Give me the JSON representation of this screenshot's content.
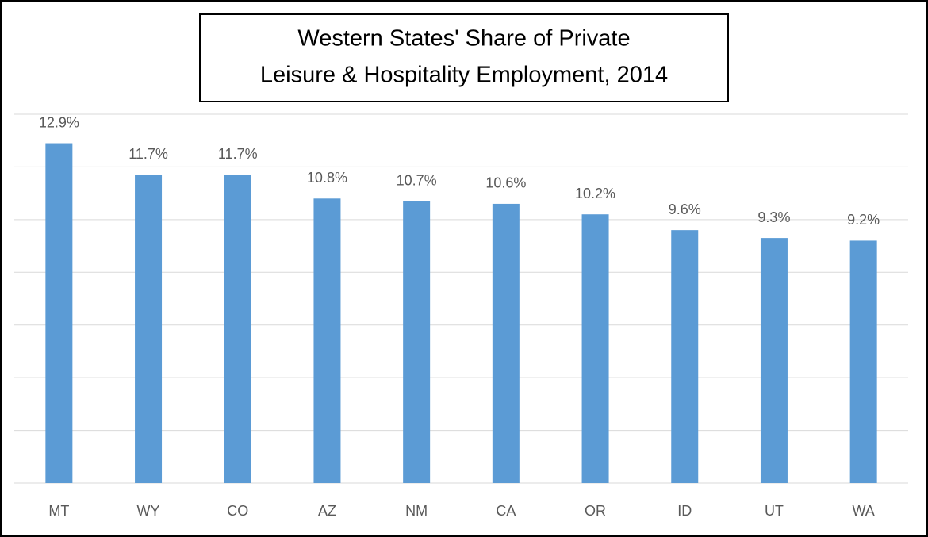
{
  "chart_data": {
    "type": "bar",
    "title": [
      "Western States' Share of Private",
      "Leisure & Hospitality Employment, 2014"
    ],
    "categories": [
      "MT",
      "WY",
      "CO",
      "AZ",
      "NM",
      "CA",
      "OR",
      "ID",
      "UT",
      "WA"
    ],
    "values": [
      12.9,
      11.7,
      11.7,
      10.8,
      10.7,
      10.6,
      10.2,
      9.6,
      9.3,
      9.2
    ],
    "value_labels": [
      "12.9%",
      "11.7%",
      "11.7%",
      "10.8%",
      "10.7%",
      "10.6%",
      "10.2%",
      "9.6%",
      "9.3%",
      "9.2%"
    ],
    "color": "#5b9bd5",
    "ylim": [
      0,
      14
    ],
    "yticks": [
      0,
      2,
      4,
      6,
      8,
      10,
      12,
      14
    ],
    "grid": true
  }
}
